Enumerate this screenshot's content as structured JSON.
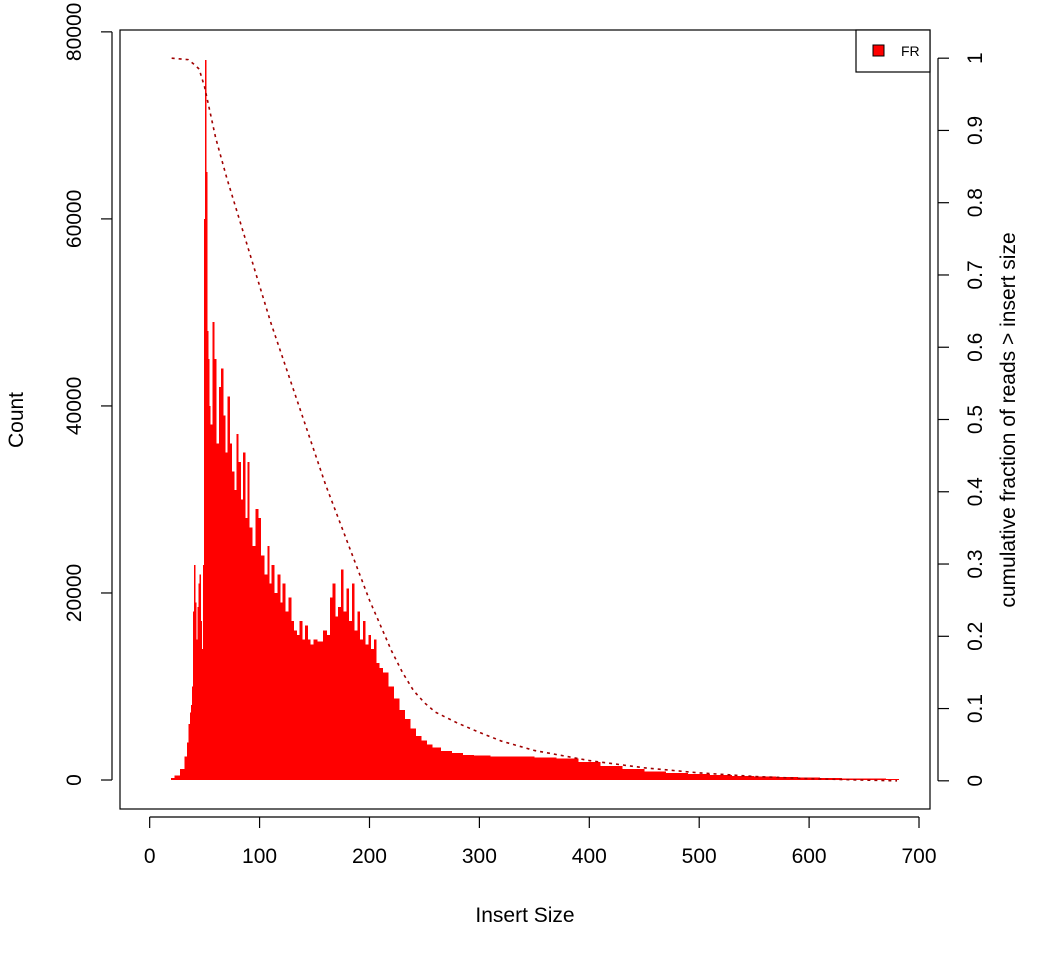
{
  "chart_data": {
    "type": "bar",
    "title": "",
    "xlabel": "Insert Size",
    "ylabel": "Count",
    "y2label": "cumulative fraction of reads > insert size",
    "xlim": [
      -27,
      710
    ],
    "ylim": [
      -3100,
      80200
    ],
    "y2lim": [
      -0.039,
      1.039
    ],
    "x_ticks": [
      0,
      100,
      200,
      300,
      400,
      500,
      600,
      700
    ],
    "y_ticks": [
      0,
      20000,
      40000,
      60000,
      80000
    ],
    "y2_ticks": [
      0,
      0.1,
      0.2,
      0.3,
      0.4,
      0.5,
      0.6,
      0.7,
      0.8,
      0.9,
      1
    ],
    "grid": false,
    "legend": {
      "position": "top-right",
      "entries": [
        {
          "label": "FR",
          "color": "#ff0000"
        }
      ]
    },
    "series": [
      {
        "name": "FR",
        "kind": "histogram",
        "color": "#ff0000",
        "x": [
          20,
          25,
          30,
          33,
          35,
          36,
          37,
          38,
          39,
          40,
          41,
          42,
          43,
          44,
          45,
          46,
          47,
          48,
          49,
          50,
          51,
          52,
          53,
          54,
          55,
          56,
          58,
          60,
          62,
          64,
          66,
          68,
          70,
          72,
          74,
          76,
          78,
          80,
          82,
          84,
          86,
          88,
          90,
          92,
          95,
          98,
          100,
          103,
          106,
          108,
          110,
          112,
          115,
          118,
          120,
          122,
          125,
          128,
          130,
          133,
          135,
          138,
          140,
          143,
          145,
          148,
          150,
          155,
          160,
          163,
          165,
          168,
          170,
          173,
          175,
          178,
          180,
          183,
          185,
          188,
          190,
          193,
          195,
          198,
          200,
          203,
          205,
          208,
          210,
          215,
          220,
          225,
          230,
          235,
          240,
          245,
          250,
          255,
          260,
          270,
          280,
          290,
          300,
          320,
          340,
          360,
          380,
          400,
          420,
          440,
          460,
          480,
          500,
          520,
          540,
          560,
          580,
          600,
          620,
          640,
          660,
          680
        ],
        "values": [
          200,
          500,
          1200,
          2500,
          4000,
          6000,
          7200,
          8000,
          10000,
          18000,
          23000,
          19000,
          15000,
          18500,
          21000,
          22000,
          17000,
          14000,
          23000,
          60000,
          77000,
          65000,
          48000,
          45000,
          40000,
          38000,
          49000,
          45000,
          36000,
          42000,
          44000,
          39000,
          35000,
          41000,
          36000,
          33000,
          31000,
          37000,
          34000,
          30000,
          35000,
          28000,
          34000,
          27000,
          25000,
          29000,
          28000,
          24000,
          22000,
          25000,
          21000,
          23000,
          20000,
          22000,
          19000,
          21000,
          18000,
          19500,
          17000,
          16000,
          15500,
          17000,
          15000,
          16500,
          15000,
          14500,
          15000,
          14800,
          16000,
          15500,
          19500,
          21000,
          17500,
          18500,
          22500,
          18000,
          20500,
          17000,
          21000,
          16000,
          18000,
          15000,
          17000,
          14500,
          15500,
          14000,
          15000,
          12500,
          12000,
          11500,
          10000,
          8700,
          7500,
          6500,
          5500,
          4700,
          4200,
          3800,
          3500,
          3100,
          2900,
          2700,
          2600,
          2500,
          2500,
          2400,
          2300,
          1900,
          1500,
          1200,
          900,
          750,
          650,
          550,
          450,
          400,
          320,
          280,
          220,
          180,
          140,
          110
        ]
      },
      {
        "name": "cumulative fraction",
        "kind": "line",
        "axis": "right",
        "color": "#a00000",
        "dash": "dotted",
        "x": [
          20,
          35,
          40,
          45,
          50,
          55,
          60,
          70,
          80,
          90,
          100,
          110,
          120,
          130,
          140,
          150,
          160,
          170,
          180,
          190,
          200,
          210,
          220,
          230,
          240,
          250,
          260,
          280,
          300,
          320,
          350,
          400,
          450,
          500,
          550,
          600,
          650,
          680
        ],
        "values": [
          1,
          0.998,
          0.992,
          0.985,
          0.96,
          0.925,
          0.89,
          0.835,
          0.785,
          0.735,
          0.685,
          0.635,
          0.59,
          0.545,
          0.5,
          0.455,
          0.41,
          0.37,
          0.33,
          0.29,
          0.25,
          0.215,
          0.18,
          0.15,
          0.125,
          0.108,
          0.095,
          0.08,
          0.067,
          0.055,
          0.042,
          0.028,
          0.018,
          0.011,
          0.006,
          0.003,
          0.001,
          0
        ]
      }
    ]
  }
}
